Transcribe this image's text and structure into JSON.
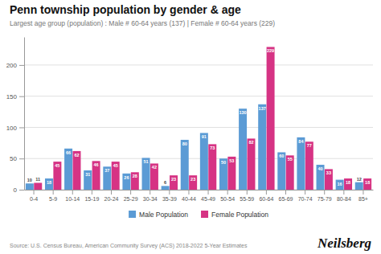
{
  "chart_data": {
    "type": "bar",
    "title": "Penn township population by gender & age",
    "subtitle": "Largest age group (population) : Male # 60-64 years (137) | Female # 60-64 years (229)",
    "annotations": [
      "Source: U.S. Census Bureau, American Community Survey (ACS) 2018-2022 5-Year Estimates",
      "Neilsberg"
    ],
    "categories": [
      "0-4",
      "5-9",
      "10-14",
      "15-19",
      "20-24",
      "25-29",
      "30-34",
      "35-39",
      "40-44",
      "45-49",
      "50-54",
      "55-59",
      "60-64",
      "65-69",
      "70-74",
      "75-79",
      "80-84",
      "85+"
    ],
    "series": [
      {
        "name": "Male Population",
        "color": "#5b9bd5",
        "values": [
          10,
          18,
          66,
          31,
          37,
          26,
          51,
          6,
          80,
          91,
          50,
          130,
          137,
          60,
          84,
          40,
          16,
          12
        ]
      },
      {
        "name": "Female Population",
        "color": "#d63384",
        "values": [
          11,
          45,
          62,
          46,
          45,
          28,
          42,
          23,
          23,
          73,
          53,
          82,
          229,
          55,
          77,
          33,
          18,
          18
        ]
      }
    ],
    "ylim": [
      0,
      245
    ],
    "yticks": [
      0,
      50,
      100,
      150,
      200
    ],
    "grid": true,
    "legend": "bottom",
    "data_labels": true
  }
}
